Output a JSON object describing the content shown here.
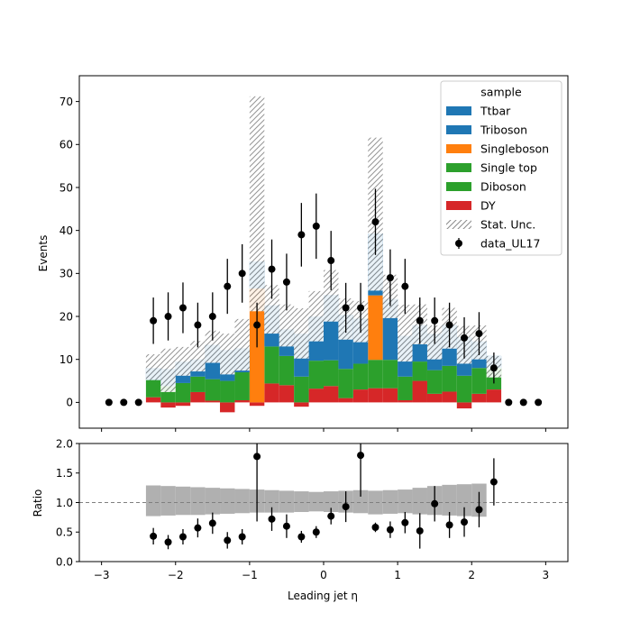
{
  "chart_data": [
    {
      "type": "bar",
      "stacked": true,
      "xlabel": "",
      "ylabel": "Events",
      "xlim": [
        -3.3,
        3.3
      ],
      "ylim": [
        -6,
        76
      ],
      "xticks": [
        "−3",
        "−2",
        "−1",
        "0",
        "1",
        "2",
        "3"
      ],
      "yticks": [
        "0",
        "10",
        "20",
        "30",
        "40",
        "50",
        "60",
        "70"
      ],
      "legend_placement": "top-right",
      "legend": {
        "title": "sample",
        "entries": [
          "Ttbar",
          "Triboson",
          "Singleboson",
          "Single top",
          "Diboson",
          "DY",
          "Stat. Unc.",
          "data_UL17"
        ]
      },
      "bin_edges": [
        -2.4,
        -2.2,
        -2.0,
        -1.8,
        -1.6,
        -1.4,
        -1.2,
        -1.0,
        -0.8,
        -0.6,
        -0.4,
        -0.2,
        0.0,
        0.2,
        0.4,
        0.6,
        0.8,
        1.0,
        1.2,
        1.4,
        1.6,
        1.8,
        2.0,
        2.2,
        2.4
      ],
      "series": [
        {
          "name": "DY",
          "color": "#d62728",
          "values": [
            1.2,
            -1.2,
            -0.8,
            2.4,
            0.4,
            -2.3,
            0.5,
            -0.8,
            4.4,
            4.0,
            -1.0,
            3.2,
            3.8,
            1.0,
            3.0,
            3.3,
            3.3,
            0.5,
            5.0,
            2.0,
            2.5,
            -1.4,
            2.0,
            3.0
          ]
        },
        {
          "name": "Diboson",
          "color": "#2ca02c",
          "values": [
            4.0,
            3.8,
            4.5,
            3.6,
            5.0,
            5.0,
            6.5,
            0.0,
            8.6,
            6.8,
            6.0,
            6.5,
            6.0,
            6.8,
            6.0,
            6.6,
            6.6,
            5.5,
            4.5,
            5.5,
            6.0,
            6.2,
            6.0,
            5.0
          ]
        },
        {
          "name": "Single top",
          "color": "#2ca02c",
          "values": [
            0,
            0,
            0,
            0,
            0,
            0,
            0,
            0,
            0,
            0,
            0,
            0,
            0,
            0,
            0,
            0,
            0,
            0,
            0,
            0,
            0,
            0,
            0,
            0
          ]
        },
        {
          "name": "Singleboson",
          "color": "#ff7f0e",
          "values": [
            0,
            0,
            0,
            0,
            0,
            0,
            0,
            26.5,
            0,
            0,
            0,
            0,
            0,
            0,
            0,
            15.0,
            0,
            0,
            0,
            0,
            0,
            0,
            0,
            0
          ]
        },
        {
          "name": "Triboson",
          "color": "#1f77b4",
          "values": [
            0,
            0,
            0,
            0,
            0,
            0,
            0,
            0,
            0,
            0,
            0,
            0,
            0,
            0,
            0,
            0,
            0,
            0,
            0,
            0,
            0,
            0,
            0,
            0
          ]
        },
        {
          "name": "Ttbar",
          "color": "#1f77b4",
          "values": [
            2.8,
            4.0,
            5.0,
            4.0,
            8.0,
            7.2,
            5.6,
            6.3,
            9.6,
            6.2,
            10.0,
            10.3,
            15.2,
            12.6,
            10.5,
            14.4,
            14.2,
            9.5,
            8.5,
            8.5,
            9.5,
            9.0,
            6.2,
            2.8
          ]
        }
      ],
      "stat_unc": {
        "up": [
          11.2,
          12.5,
          12.9,
          14.3,
          16.7,
          16.0,
          19.4,
          71.2,
          27.3,
          22.8,
          21.9,
          25.9,
          30.8,
          24.2,
          23.6,
          61.6,
          29.7,
          22.7,
          22.8,
          17.9,
          22.0,
          17.8,
          17.9,
          10.8
        ],
        "down": [
          5.2,
          2.4,
          6.2,
          7.2,
          9.2,
          6.5,
          7.4,
          21.2,
          16.0,
          13.0,
          10.2,
          14.2,
          18.8,
          14.6,
          14.0,
          26.0,
          19.6,
          9.5,
          13.5,
          10.0,
          12.5,
          9.0,
          10.0,
          5.8
        ]
      },
      "data_UL17": {
        "name": "data_UL17",
        "color": "#000000",
        "x": [
          -2.9,
          -2.7,
          -2.5,
          -2.3,
          -2.1,
          -1.9,
          -1.7,
          -1.5,
          -1.3,
          -1.1,
          -0.9,
          -0.7,
          -0.5,
          -0.3,
          -0.1,
          0.1,
          0.3,
          0.5,
          0.7,
          0.9,
          1.1,
          1.3,
          1.5,
          1.7,
          1.9,
          2.1,
          2.3,
          2.5,
          2.7,
          2.9
        ],
        "y": [
          0,
          0,
          0,
          19,
          20,
          22,
          18,
          20,
          27,
          30,
          18,
          31,
          28,
          39,
          41,
          33,
          22,
          22,
          42,
          29,
          27,
          19,
          19,
          18,
          15,
          16,
          8,
          0,
          0,
          0
        ],
        "yerr": [
          0,
          0,
          0,
          5.4,
          5.6,
          5.9,
          5.2,
          5.6,
          6.4,
          6.8,
          5.2,
          6.9,
          6.6,
          7.4,
          7.6,
          6.9,
          5.8,
          5.8,
          7.7,
          6.6,
          6.4,
          5.4,
          5.4,
          5.2,
          4.8,
          5.0,
          3.6,
          0,
          0,
          0
        ]
      }
    },
    {
      "type": "scatter",
      "xlabel": "Leading jet  η",
      "ylabel": "Ratio",
      "xlim": [
        -3.3,
        3.3
      ],
      "ylim": [
        0.0,
        2.0
      ],
      "reference_line": 1.0,
      "xticks": [
        "−3",
        "−2",
        "−1",
        "0",
        "1",
        "2",
        "3"
      ],
      "yticks": [
        "0.0",
        "0.5",
        "1.0",
        "1.5",
        "2.0"
      ],
      "unc_band": {
        "bin_edges": [
          -2.4,
          -2.2,
          -2.0,
          -1.8,
          -1.6,
          -1.4,
          -1.2,
          -1.0,
          -0.8,
          -0.6,
          -0.4,
          -0.2,
          0.0,
          0.2,
          0.4,
          0.6,
          0.8,
          1.0,
          1.2,
          1.4,
          1.6,
          1.8,
          2.0,
          2.2
        ],
        "down": [
          0.77,
          0.78,
          0.79,
          0.79,
          0.8,
          0.81,
          0.82,
          0.83,
          0.83,
          0.83,
          0.84,
          0.85,
          0.84,
          0.83,
          0.82,
          0.8,
          0.81,
          0.82,
          0.8,
          0.79,
          0.78,
          0.77,
          0.76,
          0.78
        ],
        "up": [
          1.29,
          1.28,
          1.27,
          1.26,
          1.25,
          1.24,
          1.23,
          1.22,
          1.21,
          1.2,
          1.19,
          1.18,
          1.19,
          1.2,
          1.21,
          1.2,
          1.21,
          1.22,
          1.25,
          1.28,
          1.3,
          1.31,
          1.32,
          1.3
        ]
      },
      "points": {
        "x": [
          -2.3,
          -2.1,
          -1.9,
          -1.7,
          -1.5,
          -1.3,
          -1.1,
          -0.9,
          -0.7,
          -0.5,
          -0.3,
          -0.1,
          0.1,
          0.3,
          0.5,
          0.7,
          0.9,
          1.1,
          1.3,
          1.5,
          1.7,
          1.9,
          2.1,
          2.3
        ],
        "y": [
          0.43,
          0.33,
          0.42,
          0.57,
          0.65,
          0.36,
          0.42,
          1.78,
          0.72,
          0.6,
          0.42,
          0.5,
          0.77,
          0.93,
          1.8,
          0.58,
          0.54,
          0.66,
          0.52,
          0.98,
          0.62,
          0.67,
          0.88,
          1.35
        ],
        "yerr": [
          0.14,
          0.12,
          0.13,
          0.16,
          0.18,
          0.14,
          0.13,
          1.1,
          0.2,
          0.2,
          0.1,
          0.1,
          0.14,
          0.26,
          0.7,
          0.08,
          0.14,
          0.18,
          0.3,
          0.3,
          0.22,
          0.25,
          0.3,
          0.4
        ]
      }
    }
  ]
}
